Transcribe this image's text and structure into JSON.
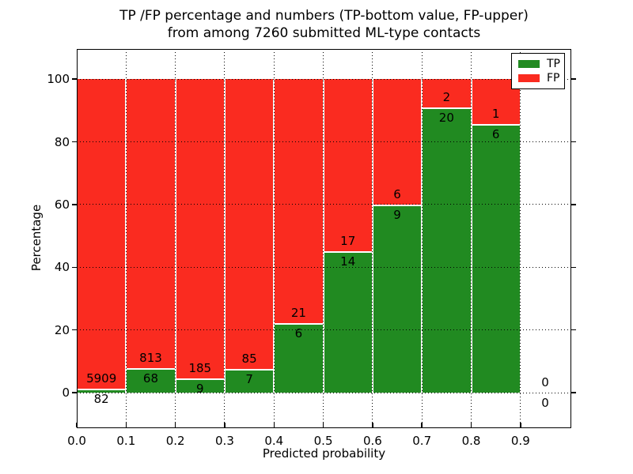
{
  "title": {
    "line1": "TP /FP percentage and numbers (TP-bottom value, FP-upper)",
    "line2": "from among 7260 submitted ML-type contacts"
  },
  "axes": {
    "xlabel": "Predicted probability",
    "ylabel": "Percentage"
  },
  "legend": {
    "items": [
      {
        "label": "TP",
        "color": "#218a21"
      },
      {
        "label": "FP",
        "color": "#fa2b20"
      }
    ]
  },
  "chart_data": {
    "type": "bar",
    "stacked": true,
    "units": "percent of bin total",
    "title": "TP /FP percentage and numbers (TP-bottom value, FP-upper) from among 7260 submitted ML-type contacts",
    "xlabel": "Predicted probability",
    "ylabel": "Percentage",
    "total_contacts": 7260,
    "bin_edges": [
      0.0,
      0.1,
      0.2,
      0.3,
      0.4,
      0.5,
      0.6,
      0.7,
      0.8,
      0.9,
      1.0
    ],
    "series": [
      {
        "name": "TP",
        "color": "#218a21",
        "counts": [
          82,
          68,
          9,
          7,
          6,
          14,
          9,
          20,
          6,
          0
        ]
      },
      {
        "name": "FP",
        "color": "#fa2b20",
        "counts": [
          5909,
          813,
          185,
          85,
          21,
          17,
          6,
          2,
          1,
          0
        ]
      }
    ],
    "tp_percent_of_bin": [
      1.37,
      7.72,
      4.64,
      7.61,
      22.22,
      45.16,
      60.0,
      90.91,
      85.71,
      0.0
    ],
    "xticks": [
      0.0,
      0.1,
      0.2,
      0.3,
      0.4,
      0.5,
      0.6,
      0.7,
      0.8,
      0.9
    ],
    "xtick_labels": [
      "0.0",
      "0.1",
      "0.2",
      "0.3",
      "0.4",
      "0.5",
      "0.6",
      "0.7",
      "0.8",
      "0.9"
    ],
    "yticks": [
      0,
      20,
      40,
      60,
      80,
      100
    ],
    "ytick_labels": [
      "0",
      "20",
      "40",
      "60",
      "80",
      "100"
    ],
    "ylim": [
      -11.3,
      109.6
    ],
    "xlim": [
      0,
      1.003
    ],
    "grid": "dotted",
    "legend_position": "upper right"
  }
}
